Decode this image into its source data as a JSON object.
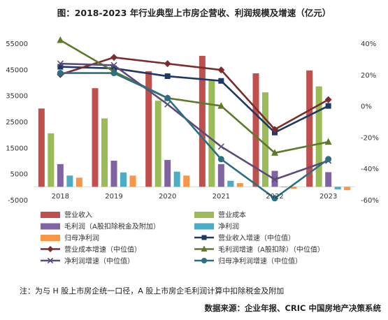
{
  "chart_data": {
    "type": "bar",
    "title": "图：2018-2023 年行业典型上市房企营收、利润规模及增速（亿元）",
    "categories": [
      "2018",
      "2019",
      "2020",
      "2021",
      "2022",
      "2023"
    ],
    "y_left": {
      "min": -5000,
      "max": 55000,
      "ticks": [
        -5000,
        5000,
        15000,
        25000,
        35000,
        45000,
        55000
      ]
    },
    "y_right": {
      "min": -60,
      "max": 40,
      "ticks": [
        -60,
        -40,
        -20,
        0,
        20,
        40
      ],
      "tick_labels": [
        "-60%",
        "-40%",
        "-20%",
        "0%",
        "20%",
        "40%"
      ]
    },
    "bar_series": [
      {
        "name": "营业收入",
        "color": "#c0504d",
        "values": [
          30000,
          37800,
          44300,
          50200,
          43500,
          44600
        ]
      },
      {
        "name": "营业成本",
        "color": "#9bbb59",
        "values": [
          20500,
          26200,
          33000,
          41000,
          36200,
          38500
        ]
      },
      {
        "name": "毛利润（A股扣除税金及附加）",
        "color": "#8064a2",
        "values": [
          8700,
          10000,
          10300,
          8700,
          6100,
          5600
        ]
      },
      {
        "name": "净利润",
        "color": "#4bacc6",
        "values": [
          4300,
          5500,
          5800,
          2300,
          -200,
          -1000
        ]
      },
      {
        "name": "归母净利润",
        "color": "#f79646",
        "values": [
          3500,
          4300,
          4300,
          1400,
          -800,
          -1300
        ]
      }
    ],
    "line_series": [
      {
        "name": "营业收入增速（中位值）",
        "color": "#1f3864",
        "marker": "square",
        "values": [
          25,
          24,
          19,
          16,
          -17,
          0
        ]
      },
      {
        "name": "营业成本增速（中位值）",
        "color": "#7b2c2c",
        "marker": "diamond",
        "values": [
          20,
          31,
          27,
          23,
          -15,
          4
        ]
      },
      {
        "name": "毛利润增速（A股扣除）（中位值）",
        "color": "#5e7a2b",
        "marker": "triangle",
        "values": [
          42,
          22,
          5,
          0,
          -30,
          -23
        ]
      },
      {
        "name": "净利润增速（中位值）",
        "color": "#5b4a7a",
        "marker": "x",
        "values": [
          27,
          26,
          1,
          -26,
          -47,
          -35
        ]
      },
      {
        "name": "归母净利润增速（中位值）",
        "color": "#2e6e83",
        "marker": "circle",
        "values": [
          21,
          21,
          5,
          -34,
          -59,
          -34
        ]
      }
    ],
    "grid": false,
    "legend_position": "bottom",
    "note": "注：为与 H 股上市房企统一口径，A 股上市房企毛利润计算中扣除税金及附加",
    "source": "数据来源：企业年报、CRIC 中国房地产决策系统"
  }
}
